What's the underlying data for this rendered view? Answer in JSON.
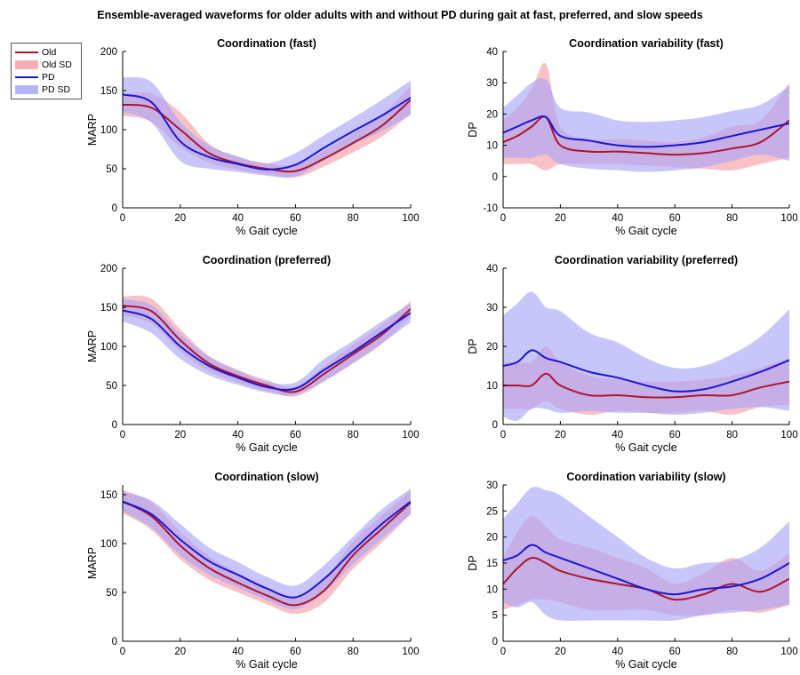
{
  "figure": {
    "title": "Ensemble-averaged waveforms for older adults with and without PD during gait at fast, preferred, and slow speeds"
  },
  "colors": {
    "old_line": "#b0132c",
    "old_sd": "#f4a0a8",
    "pd_line": "#1a16d6",
    "pd_sd": "#a9a6f7"
  },
  "legend": {
    "items": [
      {
        "label": "Old",
        "kind": "line",
        "color_key": "old_line"
      },
      {
        "label": "Old SD",
        "kind": "patch",
        "color_key": "old_sd"
      },
      {
        "label": "PD",
        "kind": "line",
        "color_key": "pd_line"
      },
      {
        "label": "PD SD",
        "kind": "patch",
        "color_key": "pd_sd"
      }
    ]
  },
  "chart_data": [
    {
      "type": "line",
      "title": "Coordination (fast)",
      "xlabel": "% Gait cycle",
      "ylabel": "MARP",
      "xlim": [
        0,
        100
      ],
      "ylim": [
        0,
        200
      ],
      "xticks": [
        0,
        20,
        40,
        60,
        80,
        100
      ],
      "yticks": [
        0,
        50,
        100,
        150,
        200
      ],
      "x": [
        0,
        10,
        20,
        30,
        40,
        50,
        60,
        70,
        80,
        90,
        100
      ],
      "series": [
        {
          "name": "Old",
          "values": [
            132,
            128,
            100,
            70,
            57,
            50,
            47,
            63,
            83,
            105,
            138
          ],
          "sd": [
            14,
            18,
            22,
            12,
            8,
            7,
            8,
            10,
            12,
            14,
            18
          ]
        },
        {
          "name": "PD",
          "values": [
            145,
            135,
            85,
            65,
            56,
            49,
            55,
            77,
            98,
            118,
            141
          ],
          "sd": [
            22,
            26,
            25,
            15,
            10,
            8,
            15,
            16,
            17,
            20,
            22
          ]
        }
      ]
    },
    {
      "type": "line",
      "title": "Coordination variability (fast)",
      "xlabel": "% Gait cycle",
      "ylabel": "DP",
      "xlim": [
        0,
        100
      ],
      "ylim": [
        -10,
        40
      ],
      "xticks": [
        0,
        20,
        40,
        60,
        80,
        100
      ],
      "yticks": [
        -10,
        0,
        10,
        20,
        30,
        40
      ],
      "x": [
        0,
        5,
        10,
        15,
        20,
        30,
        40,
        50,
        60,
        70,
        80,
        90,
        100
      ],
      "series": [
        {
          "name": "Old",
          "values": [
            11,
            13,
            16,
            19,
            10,
            8,
            8,
            7.5,
            7,
            7.5,
            9,
            11,
            18
          ],
          "sd": [
            7,
            9,
            12,
            17,
            6,
            4,
            4,
            4,
            4,
            5,
            7,
            7,
            12
          ]
        },
        {
          "name": "PD",
          "values": [
            14,
            16,
            18,
            19,
            13,
            11.5,
            10,
            9.5,
            10,
            11,
            13,
            15,
            17
          ],
          "sd": [
            8,
            10,
            12,
            12,
            9,
            9,
            8,
            8,
            8,
            8,
            8,
            8,
            12
          ]
        }
      ]
    },
    {
      "type": "line",
      "title": "Coordination (preferred)",
      "xlabel": "% Gait cycle",
      "ylabel": "MARP",
      "xlim": [
        0,
        100
      ],
      "ylim": [
        0,
        200
      ],
      "xticks": [
        0,
        20,
        40,
        60,
        80,
        100
      ],
      "yticks": [
        0,
        50,
        100,
        150,
        200
      ],
      "x": [
        0,
        10,
        20,
        30,
        40,
        50,
        60,
        70,
        80,
        90,
        100
      ],
      "series": [
        {
          "name": "Old",
          "values": [
            152,
            145,
            108,
            78,
            62,
            50,
            42,
            65,
            90,
            115,
            148
          ],
          "sd": [
            12,
            16,
            14,
            10,
            8,
            7,
            6,
            10,
            12,
            12,
            10
          ]
        },
        {
          "name": "PD",
          "values": [
            146,
            135,
            100,
            75,
            60,
            48,
            46,
            70,
            93,
            118,
            143
          ],
          "sd": [
            14,
            18,
            16,
            12,
            9,
            7,
            8,
            14,
            14,
            14,
            12
          ]
        }
      ]
    },
    {
      "type": "line",
      "title": "Coordination variability (preferred)",
      "xlabel": "% Gait cycle",
      "ylabel": "DP",
      "xlim": [
        0,
        100
      ],
      "ylim": [
        0,
        40
      ],
      "xticks": [
        0,
        20,
        40,
        60,
        80,
        100
      ],
      "yticks": [
        0,
        10,
        20,
        30,
        40
      ],
      "x": [
        0,
        5,
        10,
        15,
        20,
        30,
        40,
        50,
        60,
        70,
        80,
        90,
        100
      ],
      "series": [
        {
          "name": "Old",
          "values": [
            10,
            10,
            10,
            13,
            10,
            7.5,
            7.5,
            7,
            7,
            7.5,
            7.5,
            9.5,
            11
          ],
          "sd": [
            6,
            6,
            6,
            7,
            6,
            5,
            4,
            4,
            4,
            4,
            5,
            5,
            6
          ]
        },
        {
          "name": "PD",
          "values": [
            15,
            16,
            19,
            17,
            16,
            13.5,
            12,
            10,
            8.5,
            9,
            11,
            13.5,
            16.5
          ],
          "sd": [
            13,
            15,
            15,
            13,
            13,
            10,
            9,
            7,
            6,
            6,
            7,
            9,
            13
          ]
        }
      ]
    },
    {
      "type": "line",
      "title": "Coordination (slow)",
      "xlabel": "% Gait cycle",
      "ylabel": "MARP",
      "xlim": [
        0,
        100
      ],
      "ylim": [
        0,
        160
      ],
      "xticks": [
        0,
        20,
        40,
        60,
        80,
        100
      ],
      "yticks": [
        0,
        50,
        100,
        150
      ],
      "x": [
        0,
        10,
        20,
        30,
        40,
        50,
        60,
        70,
        80,
        90,
        100
      ],
      "series": [
        {
          "name": "Old",
          "values": [
            143,
            128,
            98,
            75,
            60,
            47,
            37,
            52,
            88,
            115,
            142
          ],
          "sd": [
            12,
            14,
            14,
            12,
            10,
            9,
            9,
            12,
            14,
            14,
            12
          ]
        },
        {
          "name": "PD",
          "values": [
            143,
            130,
            104,
            82,
            68,
            54,
            45,
            64,
            93,
            120,
            143
          ],
          "sd": [
            10,
            14,
            16,
            14,
            13,
            12,
            12,
            14,
            14,
            15,
            13
          ]
        }
      ]
    },
    {
      "type": "line",
      "title": "Coordination variability (slow)",
      "xlabel": "% Gait cycle",
      "ylabel": "DP",
      "xlim": [
        0,
        100
      ],
      "ylim": [
        0,
        30
      ],
      "xticks": [
        0,
        20,
        40,
        60,
        80,
        100
      ],
      "yticks": [
        0,
        5,
        10,
        15,
        20,
        25,
        30
      ],
      "x": [
        0,
        5,
        10,
        15,
        20,
        30,
        40,
        50,
        60,
        70,
        80,
        90,
        100
      ],
      "series": [
        {
          "name": "Old",
          "values": [
            11,
            14,
            16,
            15,
            13.5,
            12,
            11,
            10,
            8,
            9,
            11,
            9.5,
            12
          ],
          "sd": [
            5,
            7,
            8,
            7,
            6,
            6,
            5,
            4,
            3,
            4,
            5,
            4,
            5
          ]
        },
        {
          "name": "PD",
          "values": [
            15.5,
            16.5,
            18.5,
            17,
            16,
            14,
            12,
            10,
            9,
            10,
            10.5,
            12,
            15
          ],
          "sd": [
            8,
            10,
            11,
            12,
            12,
            10,
            8,
            6,
            5,
            5,
            5,
            6,
            8
          ]
        }
      ]
    }
  ]
}
